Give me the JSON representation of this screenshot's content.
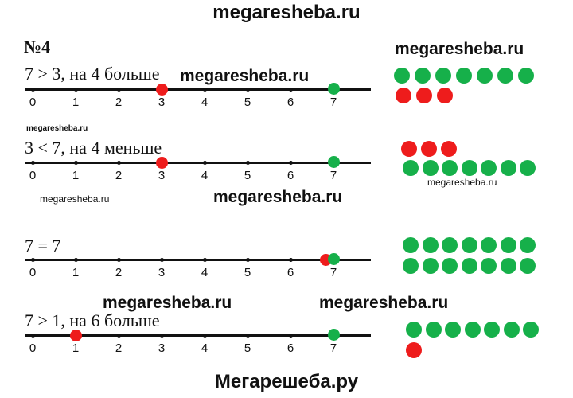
{
  "watermarks": {
    "top": "megaresheba.ru",
    "row1_center": "megaresheba.ru",
    "row1_right": "megaresheba.ru",
    "small_left": "megaresheba.ru",
    "mid_left": "megaresheba.ru",
    "mid_center": "megaresheba.ru",
    "mid_right": "megaresheba.ru",
    "row4_left": "megaresheba.ru",
    "row4_right": "megaresheba.ru",
    "bottom": "Мегарешеба.ру"
  },
  "task_number": "№4",
  "colors": {
    "green": "#16b04a",
    "red": "#ee1c1c",
    "line": "#111111"
  },
  "axis_labels": [
    "0",
    "1",
    "2",
    "3",
    "4",
    "5",
    "6",
    "7"
  ],
  "rows": [
    {
      "statement": "7 > 3, на 4 больше",
      "red_value": 3,
      "green_value": 7,
      "top_dots": {
        "color": "green",
        "count": 7
      },
      "bottom_dots": {
        "color": "red",
        "count": 3
      }
    },
    {
      "statement": "3 < 7, на 4 меньше",
      "red_value": 3,
      "green_value": 7,
      "top_dots": {
        "color": "red",
        "count": 3
      },
      "bottom_dots": {
        "color": "green",
        "count": 7
      }
    },
    {
      "statement": "7 = 7",
      "red_value": 7,
      "green_value": 7,
      "top_dots": {
        "color": "green",
        "count": 7
      },
      "bottom_dots": {
        "color": "green",
        "count": 7
      }
    },
    {
      "statement": "7 > 1, на 6 больше",
      "red_value": 1,
      "green_value": 7,
      "top_dots": {
        "color": "green",
        "count": 7
      },
      "bottom_dots": {
        "color": "red",
        "count": 1
      }
    }
  ]
}
